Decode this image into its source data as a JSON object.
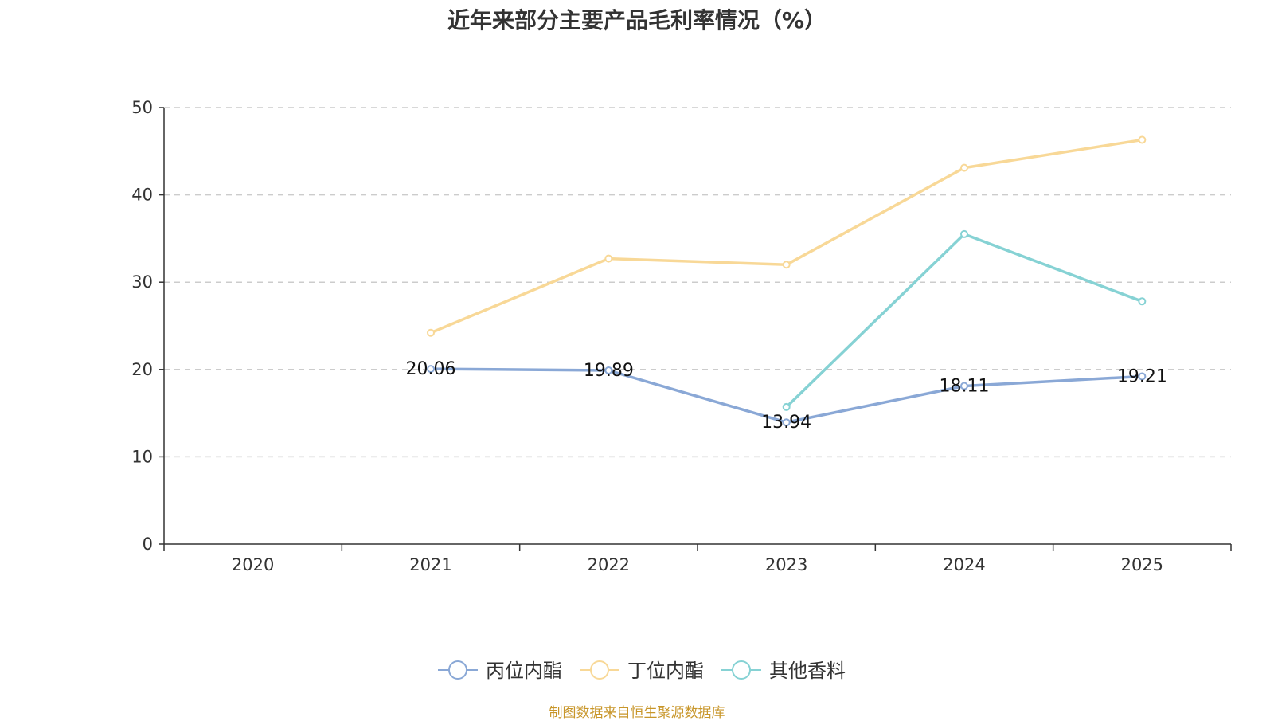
{
  "chart_data": {
    "type": "line",
    "title": "近年来部分主要产品毛利率情况（%）",
    "categories": [
      "2020",
      "2021",
      "2022",
      "2023",
      "2024",
      "2025"
    ],
    "ylim": [
      0,
      50
    ],
    "yticks": [
      "0",
      "10",
      "20",
      "30",
      "40",
      "50"
    ],
    "xlabel": "",
    "ylabel": "",
    "grid": true,
    "legend": "bottom-center",
    "series": [
      {
        "name": "丙位内酯",
        "color": "#8aa8d6",
        "values": [
          null,
          20.06,
          19.89,
          13.94,
          18.11,
          19.21
        ],
        "labels": [
          null,
          "20.06",
          "19.89",
          "13.94",
          "18.11",
          "19.21"
        ]
      },
      {
        "name": "丁位内酯",
        "color": "#f8d897",
        "values": [
          null,
          24.2,
          32.7,
          32.0,
          43.1,
          46.3
        ],
        "labels": [
          null,
          null,
          null,
          null,
          null,
          null
        ]
      },
      {
        "name": "其他香料",
        "color": "#86d2d4",
        "values": [
          null,
          null,
          null,
          15.7,
          35.5,
          27.8
        ],
        "labels": [
          null,
          null,
          null,
          null,
          null,
          null
        ]
      }
    ],
    "source": "制图数据来自恒生聚源数据库"
  }
}
